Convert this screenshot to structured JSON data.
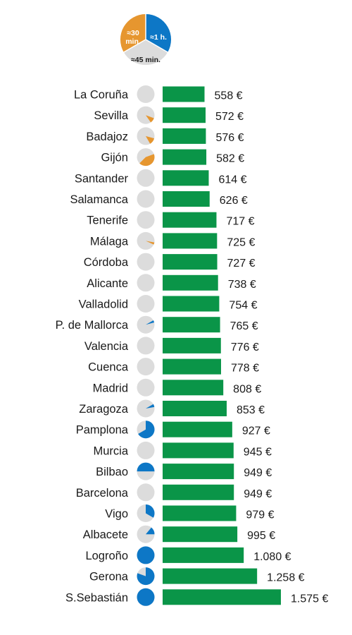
{
  "chart_data": {
    "type": "bar",
    "colors": {
      "bar": "#0a9548",
      "blue": "#0d77c6",
      "orange": "#e6962f",
      "grey": "#dcdcdc"
    },
    "legend": {
      "segments": [
        {
          "label": "≈1 h.",
          "color": "#0d77c6"
        },
        {
          "label": "≈45 min.",
          "color": "#dcdcdc"
        },
        {
          "label": "≈30 min.",
          "color": "#e6962f"
        }
      ]
    },
    "rows": [
      {
        "city": "La Coruña",
        "value": 558,
        "label": "558 €",
        "pie": null
      },
      {
        "city": "Sevilla",
        "value": 572,
        "label": "572 €",
        "pie": {
          "color": "orange",
          "start": 110,
          "end": 145
        }
      },
      {
        "city": "Badajoz",
        "value": 576,
        "label": "576 €",
        "pie": {
          "color": "orange",
          "start": 105,
          "end": 150
        }
      },
      {
        "city": "Gijón",
        "value": 582,
        "label": "582 €",
        "pie": {
          "color": "orange",
          "start": 70,
          "end": 225
        }
      },
      {
        "city": "Santander",
        "value": 614,
        "label": "614 €",
        "pie": null
      },
      {
        "city": "Salamanca",
        "value": 626,
        "label": "626 €",
        "pie": null
      },
      {
        "city": "Tenerife",
        "value": 717,
        "label": "717 €",
        "pie": null
      },
      {
        "city": "Málaga",
        "value": 725,
        "label": "725 €",
        "pie": {
          "color": "orange",
          "start": 100,
          "end": 115
        }
      },
      {
        "city": "Córdoba",
        "value": 727,
        "label": "727 €",
        "pie": null
      },
      {
        "city": "Alicante",
        "value": 738,
        "label": "738 €",
        "pie": null
      },
      {
        "city": "Valladolid",
        "value": 754,
        "label": "754 €",
        "pie": null
      },
      {
        "city": "P. de Mallorca",
        "value": 765,
        "label": "765 €",
        "pie": {
          "color": "blue",
          "start": 60,
          "end": 75
        }
      },
      {
        "city": "Valencia",
        "value": 776,
        "label": "776 €",
        "pie": null
      },
      {
        "city": "Cuenca",
        "value": 778,
        "label": "778 €",
        "pie": null
      },
      {
        "city": "Madrid",
        "value": 808,
        "label": "808 €",
        "pie": null
      },
      {
        "city": "Zaragoza",
        "value": 853,
        "label": "853 €",
        "pie": {
          "color": "blue",
          "start": 60,
          "end": 80
        }
      },
      {
        "city": "Pamplona",
        "value": 927,
        "label": "927 €",
        "pie": {
          "color": "blue",
          "start": 0,
          "end": 240
        }
      },
      {
        "city": "Murcia",
        "value": 945,
        "label": "945 €",
        "pie": null
      },
      {
        "city": "Bilbao",
        "value": 949,
        "label": "949 €",
        "pie": {
          "color": "blue",
          "start": -90,
          "end": 90
        }
      },
      {
        "city": "Barcelona",
        "value": 949,
        "label": "949 €",
        "pie": null
      },
      {
        "city": "Vigo",
        "value": 979,
        "label": "979 €",
        "pie": {
          "color": "blue",
          "start": 0,
          "end": 120
        }
      },
      {
        "city": "Albacete",
        "value": 995,
        "label": "995 €",
        "pie": {
          "color": "blue",
          "start": 40,
          "end": 90
        }
      },
      {
        "city": "Logroño",
        "value": 1080,
        "label": "1.080 €",
        "pie": {
          "color": "blue",
          "start": 0,
          "end": 360
        }
      },
      {
        "city": "Gerona",
        "value": 1258,
        "label": "1.258 €",
        "pie": {
          "color": "blue",
          "start": 0,
          "end": 290
        }
      },
      {
        "city": "S.Sebastián",
        "value": 1575,
        "label": "1.575 €",
        "pie": {
          "color": "blue",
          "start": 0,
          "end": 360
        }
      }
    ],
    "xlim": [
      0,
      1575
    ]
  }
}
